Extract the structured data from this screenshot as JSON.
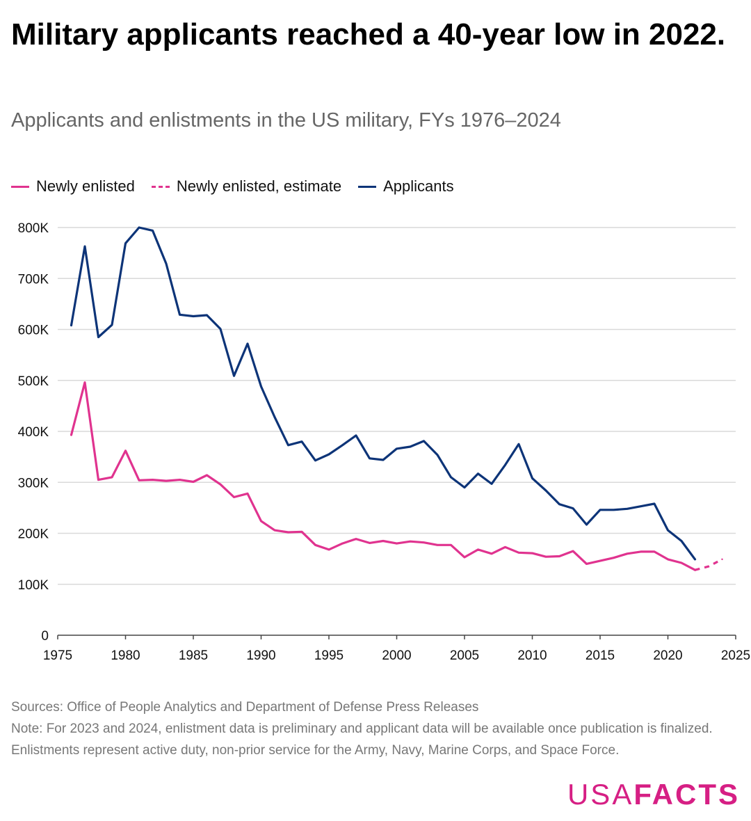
{
  "title": "Military applicants reached a 40-year low in 2022.",
  "subtitle": "Applicants and enlistments in the US military, FYs 1976–2024",
  "legend": [
    {
      "label": "Newly enlisted",
      "color": "#e0338f",
      "style": "solid"
    },
    {
      "label": "Newly enlisted, estimate",
      "color": "#e0338f",
      "style": "dashed"
    },
    {
      "label": "Applicants",
      "color": "#0d3478",
      "style": "solid"
    }
  ],
  "sources": "Sources: Office of People Analytics and Department of Defense Press Releases",
  "note": "Note: For 2023 and 2024, enlistment data is preliminary and applicant data will be available once publication is finalized. Enlistments represent active duty, non-prior service for the Army, Navy, Marine Corps, and Space Force.",
  "logo": {
    "part1": "USA",
    "part2": "FACTS",
    "color": "#d61f84"
  },
  "chart_data": {
    "type": "line",
    "x_range": [
      1975,
      2025
    ],
    "y_range": [
      0,
      800000
    ],
    "x_ticks": [
      1975,
      1980,
      1985,
      1990,
      1995,
      2000,
      2005,
      2010,
      2015,
      2020,
      2025
    ],
    "x_tick_labels": [
      "1975",
      "1980",
      "1985",
      "1990",
      "1995",
      "2000",
      "2005",
      "2010",
      "2015",
      "2020",
      "2025"
    ],
    "y_ticks": [
      0,
      100000,
      200000,
      300000,
      400000,
      500000,
      600000,
      700000,
      800000
    ],
    "y_tick_labels": [
      "0",
      "100K",
      "200K",
      "300K",
      "400K",
      "500K",
      "600K",
      "700K",
      "800K"
    ],
    "grid": "horizontal",
    "legend_position": "top-left",
    "series": [
      {
        "name": "Applicants",
        "color": "#0d3478",
        "style": "solid",
        "x": [
          1976,
          1977,
          1978,
          1979,
          1980,
          1981,
          1982,
          1983,
          1984,
          1985,
          1986,
          1987,
          1988,
          1989,
          1990,
          1991,
          1992,
          1993,
          1994,
          1995,
          1996,
          1997,
          1998,
          1999,
          2000,
          2001,
          2002,
          2003,
          2004,
          2005,
          2006,
          2007,
          2008,
          2009,
          2010,
          2011,
          2012,
          2013,
          2014,
          2015,
          2016,
          2017,
          2018,
          2019,
          2020,
          2021,
          2022
        ],
        "y": [
          608000,
          763000,
          585000,
          609000,
          769000,
          800000,
          794000,
          729000,
          629000,
          626000,
          628000,
          601000,
          509000,
          572000,
          488000,
          428000,
          373000,
          380000,
          343000,
          355000,
          373000,
          392000,
          347000,
          344000,
          366000,
          370000,
          381000,
          354000,
          310000,
          290000,
          317000,
          297000,
          334000,
          375000,
          308000,
          284000,
          257000,
          249000,
          217000,
          246000,
          246000,
          248000,
          253000,
          258000,
          206000,
          185000,
          149000
        ]
      },
      {
        "name": "Newly enlisted",
        "color": "#e0338f",
        "style": "solid",
        "x": [
          1976,
          1977,
          1978,
          1979,
          1980,
          1981,
          1982,
          1983,
          1984,
          1985,
          1986,
          1987,
          1988,
          1989,
          1990,
          1991,
          1992,
          1993,
          1994,
          1995,
          1996,
          1997,
          1998,
          1999,
          2000,
          2001,
          2002,
          2003,
          2004,
          2005,
          2006,
          2007,
          2008,
          2009,
          2010,
          2011,
          2012,
          2013,
          2014,
          2015,
          2016,
          2017,
          2018,
          2019,
          2020,
          2021,
          2022
        ],
        "y": [
          393000,
          496000,
          305000,
          310000,
          362000,
          304000,
          305000,
          303000,
          305000,
          301000,
          314000,
          296000,
          271000,
          278000,
          224000,
          206000,
          202000,
          203000,
          177000,
          168000,
          180000,
          189000,
          181000,
          185000,
          180000,
          184000,
          182000,
          177000,
          177000,
          153000,
          168000,
          160000,
          173000,
          162000,
          161000,
          154000,
          155000,
          165000,
          140000,
          146000,
          152000,
          160000,
          164000,
          164000,
          149000,
          142000,
          128000
        ]
      },
      {
        "name": "Newly enlisted, estimate",
        "color": "#e0338f",
        "style": "dashed",
        "x": [
          2022,
          2023,
          2024
        ],
        "y": [
          128000,
          135000,
          149000
        ]
      }
    ]
  }
}
